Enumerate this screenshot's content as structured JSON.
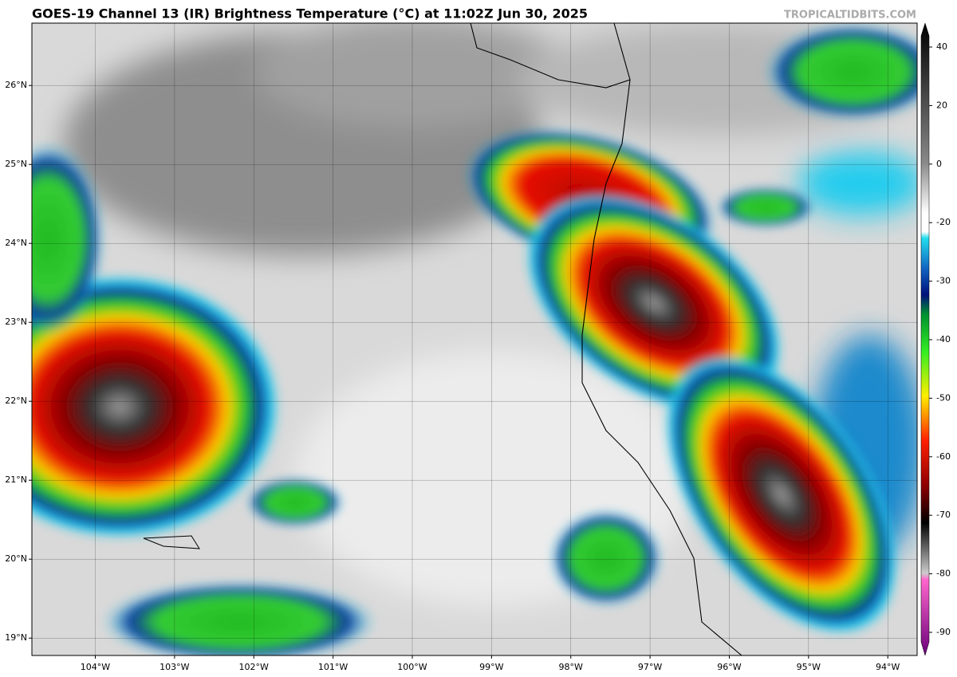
{
  "header": {
    "title": "GOES-19 Channel 13 (IR) Brightness Temperature (°C) at 11:02Z Jun 30, 2025",
    "credit": "TROPICALTIDBITS.COM"
  },
  "map": {
    "lon_range": [
      -104.8,
      -93.63
    ],
    "lat_range": [
      18.78,
      26.79
    ],
    "lon_ticks": [
      {
        "value": -104,
        "label": "104°W"
      },
      {
        "value": -103,
        "label": "103°W"
      },
      {
        "value": -102,
        "label": "102°W"
      },
      {
        "value": -101,
        "label": "101°W"
      },
      {
        "value": -100,
        "label": "100°W"
      },
      {
        "value": -99,
        "label": "99°W"
      },
      {
        "value": -98,
        "label": "98°W"
      },
      {
        "value": -97,
        "label": "97°W"
      },
      {
        "value": -96,
        "label": "96°W"
      },
      {
        "value": -95,
        "label": "95°W"
      },
      {
        "value": -94,
        "label": "94°W"
      }
    ],
    "lat_ticks": [
      {
        "value": 26,
        "label": "26°N"
      },
      {
        "value": 25,
        "label": "25°N"
      },
      {
        "value": 24,
        "label": "24°N"
      },
      {
        "value": 23,
        "label": "23°N"
      },
      {
        "value": 22,
        "label": "22°N"
      },
      {
        "value": 21,
        "label": "21°N"
      },
      {
        "value": 20,
        "label": "20°N"
      },
      {
        "value": 19,
        "label": "19°N"
      }
    ]
  },
  "colorbar": {
    "ticks": [
      40,
      20,
      0,
      -20,
      -30,
      -40,
      -50,
      -60,
      -70,
      -80,
      -90
    ]
  }
}
